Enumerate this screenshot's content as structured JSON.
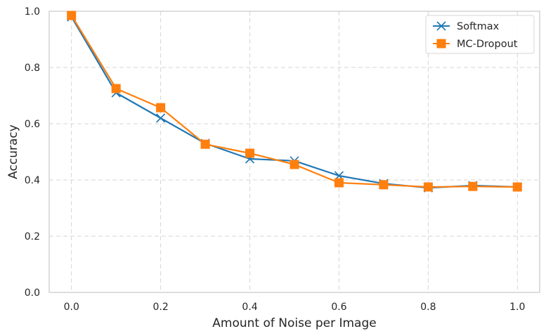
{
  "chart_data": {
    "type": "line",
    "xlabel": "Amount of Noise per Image",
    "ylabel": "Accuracy",
    "xlim": [
      -0.05,
      1.05
    ],
    "ylim": [
      0.0,
      1.0
    ],
    "xticks": [
      "0.0",
      "0.2",
      "0.4",
      "0.6",
      "0.8",
      "1.0"
    ],
    "yticks": [
      "0.0",
      "0.2",
      "0.4",
      "0.6",
      "0.8",
      "1.0"
    ],
    "grid": true,
    "legend_position": "top-right",
    "x": [
      0.0,
      0.1,
      0.2,
      0.3,
      0.4,
      0.5,
      0.6,
      0.7,
      0.8,
      0.9,
      1.0
    ],
    "series": [
      {
        "name": "Softmax",
        "color": "#1f77b4",
        "marker": "x",
        "values": [
          0.98,
          0.71,
          0.62,
          0.53,
          0.475,
          0.468,
          0.415,
          0.387,
          0.372,
          0.38,
          0.375
        ]
      },
      {
        "name": "MC-Dropout",
        "color": "#ff7f0e",
        "marker": "square",
        "values": [
          0.985,
          0.725,
          0.657,
          0.527,
          0.495,
          0.455,
          0.39,
          0.383,
          0.375,
          0.377,
          0.375
        ]
      }
    ]
  }
}
